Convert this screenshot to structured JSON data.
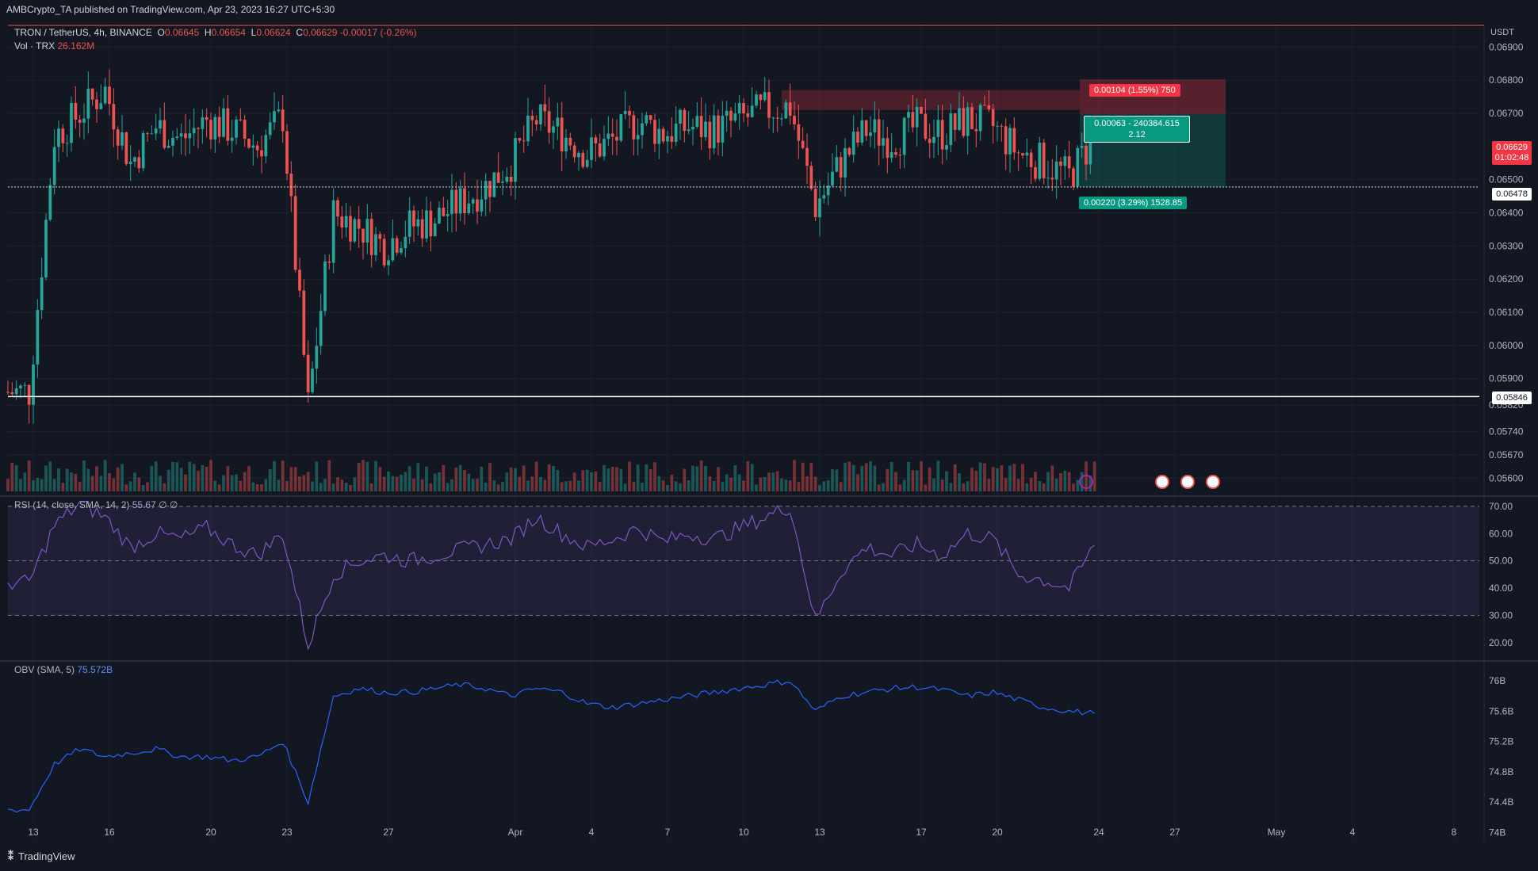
{
  "header": {
    "publisher": "AMBCrypto_TA published on TradingView.com, Apr 23, 2023 16:27 UTC+5:30"
  },
  "legend": {
    "symbol": "TRON / TetherUS, 4h, BINANCE",
    "o_label": "O",
    "o": "0.06645",
    "h_label": "H",
    "h": "0.06654",
    "l_label": "L",
    "l": "0.06624",
    "c_label": "C",
    "c": "0.06629",
    "change": "-0.00017 (-0.26%)",
    "vol_label": "Vol · TRX",
    "vol": "26.162M"
  },
  "rsi_label": {
    "name": "RSI (14, close, SMA, 14, 2)",
    "value": "55.67",
    "extra": "∅ ∅"
  },
  "obv_label": {
    "name": "OBV (SMA, 5)",
    "value": "75.572B"
  },
  "price_axis": {
    "currency": "USDT",
    "ticks": [
      "0.06900",
      "0.06800",
      "0.06700",
      "0.06500",
      "0.06400",
      "0.06300",
      "0.06200",
      "0.06100",
      "0.06000",
      "0.05900",
      "0.05820",
      "0.05740",
      "0.05670",
      "0.05600"
    ],
    "current_price": "0.06629",
    "countdown": "01:02:48",
    "line1": "0.06478",
    "line2": "0.05846"
  },
  "rsi_axis": [
    "70.00",
    "60.00",
    "50.00",
    "40.00",
    "30.00",
    "20.00"
  ],
  "obv_axis": [
    "76B",
    "75.6B",
    "75.2B",
    "74.8B",
    "74.4B",
    "74B"
  ],
  "time_axis": [
    "13",
    "16",
    "20",
    "23",
    "27",
    "Apr",
    "4",
    "7",
    "10",
    "13",
    "17",
    "20",
    "24",
    "27",
    "May",
    "4",
    "8"
  ],
  "position": {
    "stop_label": "0.00104 (1.55%) 750",
    "mid_label": "0.00063 - 240384.615",
    "rr": "2.12",
    "target_label": "0.00220 (3.29%) 1528.85"
  },
  "footer": {
    "brand": "TradingView"
  },
  "colors": {
    "background": "#131722",
    "bull": "#26a69a",
    "bear": "#ef5350",
    "rsi": "#7e57c2",
    "obv": "#2962ff",
    "grid": "#1e222d"
  },
  "chart_data": [
    {
      "type": "candlestick",
      "title": "TRON / TetherUS, 4h, BINANCE",
      "ylabel": "USDT",
      "x_range": [
        "2023-03-12",
        "2023-05-09"
      ],
      "ylim": [
        0.0556,
        0.0697
      ],
      "series": [
        {
          "name": "close",
          "x": [
            "2023-03-12",
            "2023-03-13",
            "2023-03-14",
            "2023-03-15",
            "2023-03-16",
            "2023-03-17",
            "2023-03-18",
            "2023-03-19",
            "2023-03-20",
            "2023-03-21",
            "2023-03-22",
            "2023-03-23",
            "2023-03-24",
            "2023-03-25",
            "2023-03-26",
            "2023-03-27",
            "2023-03-28",
            "2023-03-29",
            "2023-03-30",
            "2023-03-31",
            "2023-04-01",
            "2023-04-02",
            "2023-04-03",
            "2023-04-04",
            "2023-04-05",
            "2023-04-06",
            "2023-04-07",
            "2023-04-08",
            "2023-04-09",
            "2023-04-10",
            "2023-04-11",
            "2023-04-12",
            "2023-04-13",
            "2023-04-14",
            "2023-04-15",
            "2023-04-16",
            "2023-04-17",
            "2023-04-18",
            "2023-04-19",
            "2023-04-20",
            "2023-04-21",
            "2023-04-22",
            "2023-04-23"
          ],
          "values": [
            0.0586,
            0.0663,
            0.067,
            0.0677,
            0.0655,
            0.0666,
            0.0662,
            0.0668,
            0.0665,
            0.066,
            0.0669,
            0.0582,
            0.064,
            0.0636,
            0.063,
            0.0636,
            0.0638,
            0.0643,
            0.0648,
            0.0655,
            0.0668,
            0.0664,
            0.0658,
            0.0662,
            0.0668,
            0.0664,
            0.0666,
            0.0665,
            0.0668,
            0.0671,
            0.0672,
            0.0642,
            0.0655,
            0.0665,
            0.0662,
            0.0666,
            0.0664,
            0.0668,
            0.0666,
            0.0658,
            0.0655,
            0.0651,
            0.0663
          ]
        }
      ],
      "levels": [
        0.06478,
        0.05846
      ],
      "supply_zone": [
        0.0671,
        0.0677
      ],
      "position": {
        "entry": 0.06698,
        "stop": 0.06802,
        "target": 0.06478
      }
    },
    {
      "type": "line",
      "title": "RSI (14, close, SMA, 14, 2)",
      "ylim": [
        15,
        72
      ],
      "bands": [
        30,
        50,
        70
      ],
      "series": [
        {
          "name": "RSI",
          "values": [
            42,
            63,
            71,
            66,
            55,
            60,
            58,
            62,
            56,
            52,
            60,
            19,
            45,
            50,
            52,
            50,
            52,
            54,
            56,
            58,
            66,
            60,
            55,
            58,
            62,
            57,
            60,
            58,
            62,
            66,
            70,
            28,
            46,
            55,
            52,
            56,
            52,
            60,
            58,
            45,
            43,
            40,
            55.67
          ]
        }
      ]
    },
    {
      "type": "line",
      "title": "OBV (SMA, 5)",
      "ylim": [
        73.9,
        76.2
      ],
      "series": [
        {
          "name": "OBV",
          "values": [
            74.3,
            74.9,
            75.1,
            75.0,
            75.05,
            75.1,
            75.0,
            75.0,
            74.95,
            75.0,
            75.2,
            74.4,
            75.8,
            75.9,
            75.85,
            75.85,
            75.9,
            75.95,
            75.9,
            75.8,
            75.9,
            75.85,
            75.7,
            75.65,
            75.7,
            75.75,
            75.8,
            75.85,
            75.9,
            75.95,
            76.0,
            75.6,
            75.8,
            75.85,
            75.9,
            75.92,
            75.88,
            75.8,
            75.85,
            75.75,
            75.65,
            75.6,
            75.57
          ]
        }
      ]
    }
  ]
}
